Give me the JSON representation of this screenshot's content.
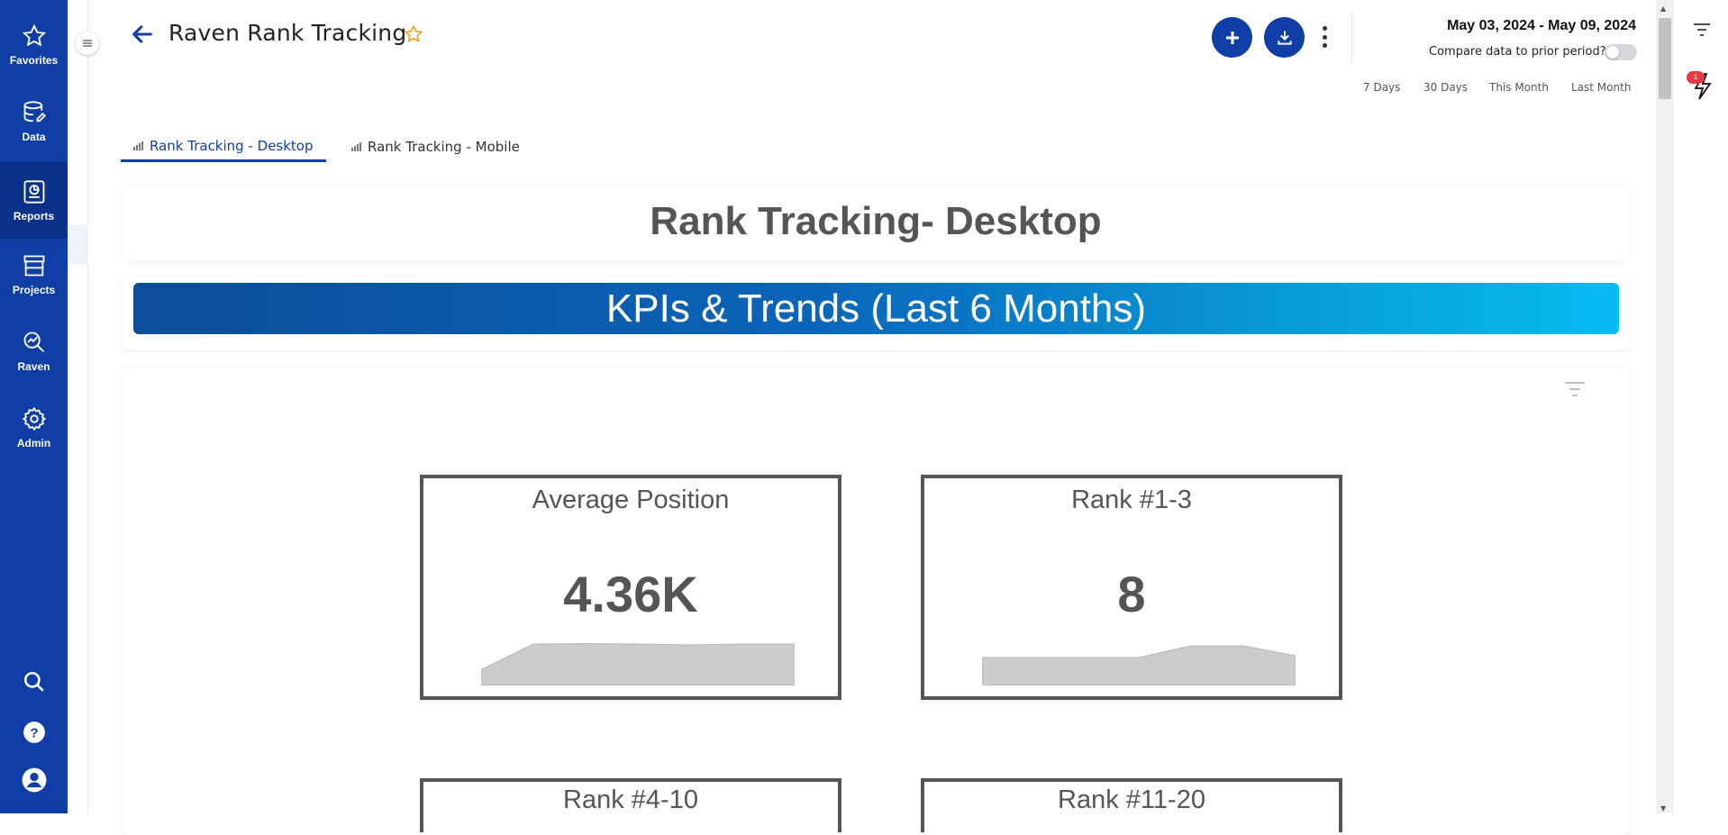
{
  "nav": {
    "items": [
      {
        "label": "Favorites",
        "icon": "star-icon"
      },
      {
        "label": "Data",
        "icon": "database-icon"
      },
      {
        "label": "Reports",
        "icon": "report-icon"
      },
      {
        "label": "Projects",
        "icon": "store-icon"
      },
      {
        "label": "Raven",
        "icon": "raven-icon"
      },
      {
        "label": "Admin",
        "icon": "gear-icon"
      }
    ],
    "active": "Reports",
    "bottom": [
      "search-icon",
      "help-icon",
      "user-icon"
    ]
  },
  "header": {
    "title": "Raven Rank Tracking",
    "date_range": "May 03, 2024 - May 09, 2024",
    "compare_label": "Compare data to prior period?",
    "compare_on": false,
    "quick_ranges": [
      "7 Days",
      "30 Days",
      "This Month",
      "Last Month"
    ]
  },
  "tabs": [
    {
      "label": "Rank Tracking - Desktop",
      "active": true
    },
    {
      "label": "Rank Tracking - Mobile",
      "active": false
    }
  ],
  "report": {
    "title": "Rank Tracking- Desktop",
    "banner": "KPIs & Trends (Last 6 Months)"
  },
  "kpis": [
    {
      "title": "Average Position",
      "value": "4.36K",
      "trend": [
        0.35,
        0.92,
        0.93,
        0.92,
        0.9,
        0.92,
        0.92
      ]
    },
    {
      "title": "Rank #1-3",
      "value": "8",
      "trend": [
        0.62,
        0.62,
        0.62,
        0.62,
        0.88,
        0.88,
        0.66
      ]
    },
    {
      "title": "Rank #4-10",
      "value": ""
    },
    {
      "title": "Rank #11-20",
      "value": ""
    }
  ],
  "notifications": {
    "badge": "1"
  },
  "colors": {
    "brand": "#0f3fa6",
    "star": "#f0a020",
    "banner_start": "#0d4d9a",
    "banner_end": "#06bcf0"
  }
}
